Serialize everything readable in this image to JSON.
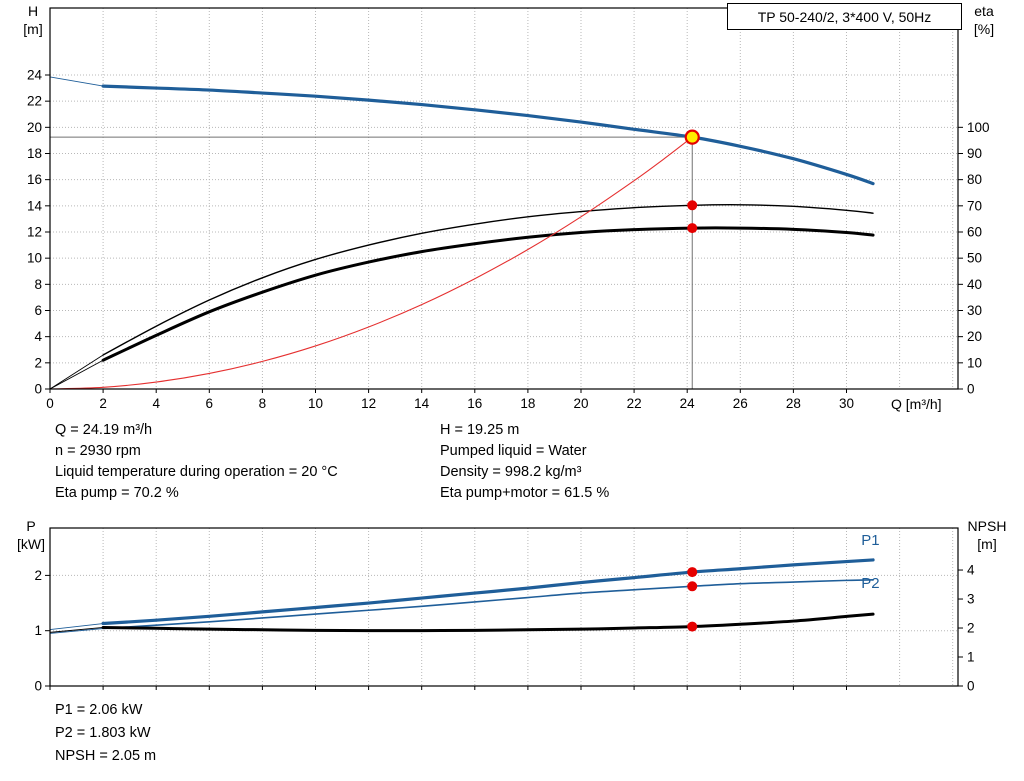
{
  "header": {
    "title": "TP 50-240/2, 3*400 V, 50Hz"
  },
  "axis_titles": {
    "top_left": [
      "H",
      "[m]"
    ],
    "top_right": [
      "eta",
      "[%]"
    ],
    "x": "Q [m³/h]",
    "bottom_left": [
      "P",
      "[kW]"
    ],
    "bottom_right": [
      "NPSH",
      "[m]"
    ]
  },
  "info_top": {
    "left": [
      "Q = 24.19 m³/h",
      "n = 2930 rpm",
      "Liquid temperature during operation = 20 °C",
      "Eta pump = 70.2 %"
    ],
    "right": [
      "H = 19.25 m",
      "Pumped liquid = Water",
      "Density = 998.2 kg/m³",
      "Eta pump+motor = 61.5 %"
    ]
  },
  "info_bottom": [
    "P1 = 2.06 kW",
    "P2 = 1.803 kW",
    "NPSH = 2.05 m"
  ],
  "colors": {
    "curve_blue": "#1f5e99",
    "curve_black": "#000000",
    "curve_red": "#e53030",
    "marker_red": "#e50000",
    "marker_yellow": "#ffec00",
    "crosshair_gray": "#707070",
    "grid_gray": "#b8b8b8"
  },
  "chart_data": [
    {
      "id": "head-eta-chart",
      "type": "line",
      "title": "Pump head and efficiency curves",
      "x_axis": {
        "label": "Q [m³/h]",
        "min": 0,
        "max": 34.2,
        "grid_step": 2,
        "ticks": [
          0,
          2,
          4,
          6,
          8,
          10,
          12,
          14,
          16,
          18,
          20,
          22,
          24,
          26,
          28,
          30
        ]
      },
      "left_axis": {
        "label": "H [m]",
        "min": 0,
        "max": 29.12,
        "ticks": [
          0,
          2,
          4,
          6,
          8,
          10,
          12,
          14,
          16,
          18,
          20,
          22,
          24
        ],
        "grid": [
          2,
          4,
          6,
          8,
          10,
          12,
          14,
          16,
          18,
          20,
          22,
          24
        ]
      },
      "right_axis": {
        "label": "eta [%]",
        "min": 0,
        "max": 145.6,
        "ticks": [
          0,
          10,
          20,
          30,
          40,
          50,
          60,
          70,
          80,
          90,
          100
        ]
      },
      "crosshair": {
        "x": 24.19,
        "y_left": 19.25
      },
      "series": [
        {
          "name": "head-curve",
          "axis": "left",
          "color_key": "curve_blue",
          "width": 3.2,
          "lead": [
            0,
            23.85
          ],
          "points": [
            [
              2,
              23.15
            ],
            [
              4,
              23.0
            ],
            [
              6,
              22.85
            ],
            [
              8,
              22.62
            ],
            [
              10,
              22.38
            ],
            [
              12,
              22.08
            ],
            [
              14,
              21.74
            ],
            [
              16,
              21.34
            ],
            [
              18,
              20.9
            ],
            [
              20,
              20.4
            ],
            [
              22,
              19.85
            ],
            [
              24.19,
              19.25
            ],
            [
              26,
              18.55
            ],
            [
              28,
              17.6
            ],
            [
              30,
              16.4
            ],
            [
              31,
              15.7
            ]
          ]
        },
        {
          "name": "eta-pump-curve",
          "axis": "right",
          "color_key": "curve_black",
          "width": 1.4,
          "lead": [
            0,
            0
          ],
          "points": [
            [
              2,
              13
            ],
            [
              4,
              24
            ],
            [
              6,
              34
            ],
            [
              8,
              42.5
            ],
            [
              10,
              49.5
            ],
            [
              12,
              55
            ],
            [
              14,
              59.5
            ],
            [
              16,
              63
            ],
            [
              18,
              65.8
            ],
            [
              20,
              67.8
            ],
            [
              22,
              69.3
            ],
            [
              24.19,
              70.2
            ],
            [
              26,
              70.4
            ],
            [
              28,
              69.8
            ],
            [
              30,
              68.3
            ],
            [
              31,
              67.2
            ]
          ]
        },
        {
          "name": "eta-pump-motor-curve",
          "axis": "right",
          "color_key": "curve_black",
          "width": 3.0,
          "lead": [
            0,
            0
          ],
          "points": [
            [
              2,
              11
            ],
            [
              4,
              20.5
            ],
            [
              6,
              29.5
            ],
            [
              8,
              37
            ],
            [
              10,
              43.5
            ],
            [
              12,
              48.5
            ],
            [
              14,
              52.5
            ],
            [
              16,
              55.5
            ],
            [
              18,
              58
            ],
            [
              20,
              59.8
            ],
            [
              22,
              60.9
            ],
            [
              24.19,
              61.5
            ],
            [
              26,
              61.5
            ],
            [
              28,
              61
            ],
            [
              30,
              59.8
            ],
            [
              31,
              58.8
            ]
          ]
        },
        {
          "name": "system-curve",
          "axis": "left",
          "color_key": "curve_red",
          "width": 1.1,
          "points": [
            [
              0,
              0
            ],
            [
              2,
              0.13
            ],
            [
              4,
              0.53
            ],
            [
              6,
              1.19
            ],
            [
              8,
              2.11
            ],
            [
              10,
              3.29
            ],
            [
              12,
              4.74
            ],
            [
              14,
              6.45
            ],
            [
              16,
              8.43
            ],
            [
              18,
              10.66
            ],
            [
              20,
              13.16
            ],
            [
              22,
              15.92
            ],
            [
              23.1,
              17.55
            ],
            [
              24.19,
              19.25
            ]
          ]
        }
      ],
      "markers": [
        {
          "name": "duty-point",
          "axis": "left",
          "x": 24.19,
          "y": 19.25,
          "r": 6.5,
          "fill_key": "marker_yellow",
          "stroke_key": "marker_red",
          "stroke_width": 2.2
        },
        {
          "name": "eta-pump-point",
          "axis": "right",
          "x": 24.19,
          "y": 70.2,
          "r": 5,
          "fill_key": "marker_red"
        },
        {
          "name": "eta-pump-motor-point",
          "axis": "right",
          "x": 24.19,
          "y": 61.5,
          "r": 5,
          "fill_key": "marker_red"
        }
      ],
      "annotations": []
    },
    {
      "id": "power-npsh-chart",
      "type": "line",
      "title": "Power and NPSH curves",
      "x_axis": {
        "label": "Q [m³/h]",
        "min": 0,
        "max": 34.2,
        "grid_step": 2,
        "ticks": [
          0,
          2,
          4,
          6,
          8,
          10,
          12,
          14,
          16,
          18,
          20,
          22,
          24,
          26,
          28,
          30
        ]
      },
      "left_axis": {
        "label": "P [kW]",
        "min": 0,
        "max": 2.857,
        "ticks": [
          0,
          1,
          2
        ],
        "grid": [
          1,
          2
        ]
      },
      "right_axis": {
        "label": "NPSH [m]",
        "min": 0,
        "max": 5.45,
        "ticks": [
          0,
          1,
          2,
          3,
          4
        ]
      },
      "series": [
        {
          "name": "p1-curve",
          "axis": "left",
          "color_key": "curve_blue",
          "width": 3.2,
          "lead": [
            0,
            1.02
          ],
          "points": [
            [
              2,
              1.13
            ],
            [
              4,
              1.19
            ],
            [
              6,
              1.26
            ],
            [
              8,
              1.34
            ],
            [
              10,
              1.42
            ],
            [
              12,
              1.5
            ],
            [
              14,
              1.59
            ],
            [
              16,
              1.68
            ],
            [
              18,
              1.77
            ],
            [
              20,
              1.87
            ],
            [
              22,
              1.96
            ],
            [
              24.19,
              2.06
            ],
            [
              26,
              2.12
            ],
            [
              28,
              2.19
            ],
            [
              30,
              2.25
            ],
            [
              31,
              2.28
            ]
          ]
        },
        {
          "name": "p2-curve",
          "axis": "left",
          "color_key": "curve_blue",
          "width": 1.6,
          "lead": [
            0,
            0.95
          ],
          "points": [
            [
              2,
              1.04
            ],
            [
              4,
              1.1
            ],
            [
              6,
              1.16
            ],
            [
              8,
              1.23
            ],
            [
              10,
              1.3
            ],
            [
              12,
              1.37
            ],
            [
              14,
              1.44
            ],
            [
              16,
              1.52
            ],
            [
              18,
              1.6
            ],
            [
              20,
              1.68
            ],
            [
              22,
              1.74
            ],
            [
              24.19,
              1.803
            ],
            [
              26,
              1.85
            ],
            [
              28,
              1.88
            ],
            [
              30,
              1.91
            ],
            [
              31,
              1.92
            ]
          ]
        },
        {
          "name": "npsh-curve",
          "axis": "right",
          "color_key": "curve_black",
          "width": 3.0,
          "lead": [
            0,
            1.85
          ],
          "points": [
            [
              2,
              2.02
            ],
            [
              4,
              1.99
            ],
            [
              6,
              1.96
            ],
            [
              8,
              1.94
            ],
            [
              10,
              1.92
            ],
            [
              12,
              1.91
            ],
            [
              14,
              1.91
            ],
            [
              16,
              1.92
            ],
            [
              18,
              1.94
            ],
            [
              20,
              1.96
            ],
            [
              22,
              2.0
            ],
            [
              24.19,
              2.05
            ],
            [
              26,
              2.13
            ],
            [
              28,
              2.24
            ],
            [
              30,
              2.4
            ],
            [
              31,
              2.48
            ]
          ]
        }
      ],
      "markers": [
        {
          "name": "p1-point",
          "axis": "left",
          "x": 24.19,
          "y": 2.06,
          "r": 5,
          "fill_key": "marker_red"
        },
        {
          "name": "p2-point",
          "axis": "left",
          "x": 24.19,
          "y": 1.803,
          "r": 5,
          "fill_key": "marker_red"
        },
        {
          "name": "npsh-point",
          "axis": "right",
          "x": 24.19,
          "y": 2.05,
          "r": 5,
          "fill_key": "marker_red"
        }
      ],
      "annotations": [
        {
          "text": "P1",
          "axis": "left",
          "x": 30.9,
          "y": 2.64,
          "color_key": "curve_blue"
        },
        {
          "text": "P2",
          "axis": "left",
          "x": 30.9,
          "y": 1.86,
          "color_key": "curve_blue"
        }
      ]
    }
  ]
}
